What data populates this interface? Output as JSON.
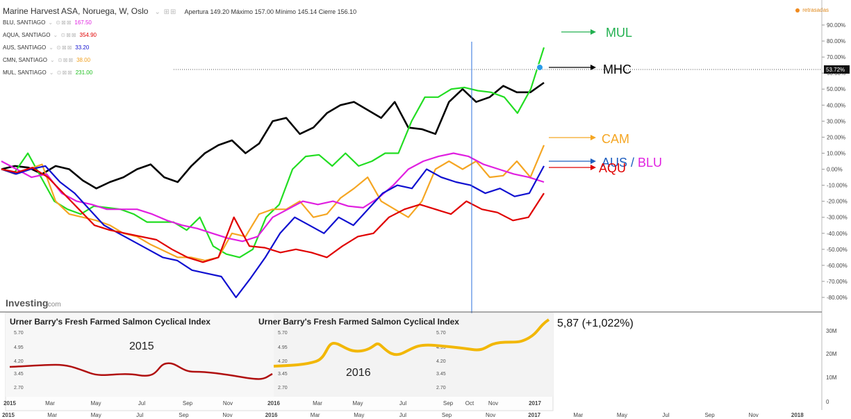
{
  "header": {
    "title": "Marine Harvest ASA, Noruega, W, Oslo",
    "ohlc": "Apertura 149.20 Máximo 157.00 Mínimo 145.14 Cierre 156.10",
    "delayed_label": "retrasadas"
  },
  "symbols": [
    {
      "label": "BLU, SANTIAGO",
      "value": "167.50",
      "color": "#e020e0"
    },
    {
      "label": "AQUA, SANTIAGO",
      "value": "354.90",
      "color": "#e00000"
    },
    {
      "label": "AUS, SANTIAGO",
      "value": "33.20",
      "color": "#1010d0"
    },
    {
      "label": "CMN, SANTIAGO",
      "value": "38.00",
      "color": "#f0a020"
    },
    {
      "label": "MUL, SANTIAGO",
      "value": "231.00",
      "color": "#20c020"
    }
  ],
  "last_value_tag": "53.72%",
  "logo": {
    "main": "Investing",
    "suffix": ".com"
  },
  "annotations": {
    "mul": "MUL",
    "mhc": "MHC",
    "cam": "CAM",
    "aus": "AUS",
    "slash": " / ",
    "blu": "BLU",
    "aqu": "AQU",
    "year2015": "2015",
    "year2016": "2016",
    "index_change": "5,87 (+1,022%)"
  },
  "index_panel": {
    "title": "Urner Barry's Fresh Farmed Salmon Cyclical Index",
    "ticks": [
      "5.70",
      "4.95",
      "4.20",
      "3.45",
      "2.70"
    ]
  },
  "volume_axis": [
    "30M",
    "20M",
    "10M",
    "0"
  ],
  "x_axis_inset": [
    "2015",
    "Mar",
    "May",
    "Jul",
    "Sep",
    "Nov",
    "2016",
    "Mar",
    "May",
    "Jul",
    "Sep",
    "Oct",
    "Nov",
    "2017"
  ],
  "colors": {
    "MHC": "#000000",
    "MUL": "#22dd22",
    "CAM": "#f5a623",
    "BLU": "#e020e0",
    "AUS": "#1010d0",
    "AQU": "#e00000",
    "index2015": "#b01010",
    "index2016": "#f2b705"
  },
  "chart_data": {
    "type": "line",
    "title": "Marine Harvest ASA, Noruega, W, Oslo",
    "y_unit": "%",
    "ylim": [
      -80,
      90
    ],
    "y_ticks": [
      "90.00%",
      "80.00%",
      "70.00%",
      "60.00%",
      "50.00%",
      "40.00%",
      "30.00%",
      "20.00%",
      "10.00%",
      "0.00%",
      "-10.00%",
      "-20.00%",
      "-30.00%",
      "-40.00%",
      "-50.00%",
      "-60.00%",
      "-70.00%",
      "-80.00%"
    ],
    "x_ticks": [
      "2015",
      "Mar",
      "May",
      "Jul",
      "Sep",
      "Nov",
      "2016",
      "Mar",
      "May",
      "Jul",
      "Sep",
      "Nov",
      "2017",
      "Mar",
      "May",
      "Jul",
      "Sep",
      "Nov",
      "2018"
    ],
    "grid": true,
    "series": [
      {
        "name": "MHC",
        "values": [
          0,
          2,
          1,
          -3,
          2,
          0,
          -7,
          -12,
          -8,
          -5,
          0,
          3,
          -5,
          -8,
          2,
          10,
          15,
          18,
          10,
          16,
          30,
          32,
          22,
          26,
          35,
          40,
          42,
          37,
          32,
          42,
          26,
          25,
          22,
          42,
          50,
          42,
          45,
          52,
          48,
          48,
          54
        ]
      },
      {
        "name": "MUL",
        "values": [
          0,
          -2,
          10,
          -5,
          -20,
          -25,
          -28,
          -23,
          -24,
          -25,
          -28,
          -33,
          -33,
          -33,
          -38,
          -30,
          -48,
          -53,
          -55,
          -50,
          -30,
          -22,
          0,
          8,
          9,
          2,
          10,
          2,
          5,
          10,
          10,
          30,
          45,
          45,
          50,
          51,
          49,
          48,
          45,
          35,
          50,
          76
        ]
      },
      {
        "name": "CAM",
        "values": [
          0,
          -3,
          0,
          3,
          -20,
          -28,
          -30,
          -32,
          -35,
          -40,
          -42,
          -47,
          -51,
          -55,
          -55,
          -57,
          -55,
          -40,
          -42,
          -28,
          -25,
          -25,
          -20,
          -30,
          -28,
          -18,
          -12,
          -5,
          -20,
          -25,
          -30,
          -20,
          0,
          5,
          0,
          5,
          -5,
          -4,
          5,
          -5,
          15
        ]
      },
      {
        "name": "BLU",
        "values": [
          5,
          0,
          -5,
          -3,
          -15,
          -20,
          -22,
          -25,
          -25,
          -25,
          -28,
          -32,
          -35,
          -37,
          -40,
          -43,
          -45,
          -42,
          -30,
          -25,
          -20,
          -22,
          -20,
          -23,
          -24,
          -18,
          -10,
          0,
          5,
          8,
          10,
          8,
          3,
          0,
          -3,
          -5,
          -8
        ]
      },
      {
        "name": "AUS",
        "values": [
          0,
          -3,
          0,
          2,
          -8,
          -15,
          -25,
          -35,
          -40,
          -45,
          -50,
          -55,
          -57,
          -63,
          -65,
          -67,
          -80,
          -68,
          -55,
          -40,
          -30,
          -35,
          -40,
          -30,
          -35,
          -25,
          -15,
          -10,
          -12,
          0,
          -5,
          -8,
          -10,
          -15,
          -12,
          -17,
          -15,
          2
        ]
      },
      {
        "name": "AQU",
        "values": [
          0,
          -2,
          1,
          -5,
          -15,
          -25,
          -35,
          -38,
          -40,
          -42,
          -44,
          -50,
          -55,
          -58,
          -55,
          -30,
          -48,
          -49,
          -52,
          -50,
          -52,
          -55,
          -48,
          -42,
          -40,
          -30,
          -25,
          -22,
          -25,
          -28,
          -20,
          -25,
          -27,
          -32,
          -30,
          -15
        ]
      }
    ]
  }
}
